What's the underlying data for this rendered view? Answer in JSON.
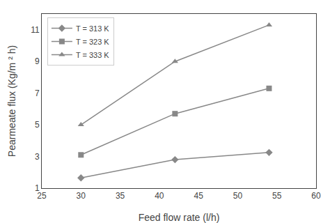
{
  "chart_data": {
    "type": "line",
    "x": [
      30,
      42,
      54
    ],
    "series": [
      {
        "name": "T = 313 K",
        "values": [
          1.65,
          2.8,
          3.25
        ],
        "marker": "diamond",
        "color": "#888888"
      },
      {
        "name": "T = 323 K",
        "values": [
          3.1,
          5.7,
          7.3
        ],
        "marker": "square",
        "color": "#888888"
      },
      {
        "name": "T = 333 K",
        "values": [
          5.0,
          9.0,
          11.3
        ],
        "marker": "triangle-up",
        "color": "#888888"
      }
    ],
    "xlabel": "Feed flow rate (l/h)",
    "ylabel": "Pearmeate flux (Kg/m ² h)",
    "xlim": [
      25,
      60
    ],
    "ylim": [
      1,
      12
    ],
    "xticks": [
      25,
      30,
      35,
      40,
      45,
      50,
      55,
      60
    ],
    "yticks": [
      1,
      3,
      5,
      7,
      9,
      11
    ],
    "grid": false,
    "legend": "upper left"
  }
}
